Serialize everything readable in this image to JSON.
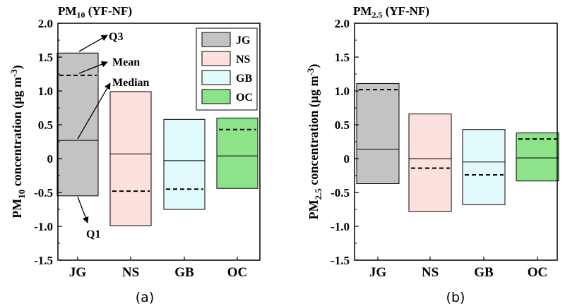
{
  "chart_data": [
    {
      "type": "box",
      "title_main": "PM",
      "title_sub": "10",
      "title_rest": " (YF-NF)",
      "ylabel_main": "PM",
      "ylabel_sub": "10",
      "ylabel_rest": " concentration (μg m",
      "ylabel_sup": "-3",
      "ylabel_end": ")",
      "panel_label": "(a)",
      "ylim": [
        -1.5,
        2.0
      ],
      "yticks": [
        "-1.5",
        "-1.0",
        "-0.5",
        "0",
        "0.5",
        "1.0",
        "1.5",
        "2.0"
      ],
      "categories": [
        "JG",
        "NS",
        "GB",
        "OC"
      ],
      "boxes": [
        {
          "q1": -0.55,
          "median": 0.27,
          "mean": 1.23,
          "q3": 1.56
        },
        {
          "q1": -0.99,
          "median": 0.07,
          "mean": -0.48,
          "q3": 0.99
        },
        {
          "q1": -0.75,
          "median": -0.03,
          "mean": -0.45,
          "q3": 0.58
        },
        {
          "q1": -0.44,
          "median": 0.04,
          "mean": 0.43,
          "q3": 0.6
        }
      ],
      "annotations": [
        "Q3",
        "Mean",
        "Median",
        "Q1"
      ],
      "legend": [
        "JG",
        "NS",
        "GB",
        "OC"
      ]
    },
    {
      "type": "box",
      "title_main": "PM",
      "title_sub": "2.5",
      "title_rest": " (YF-NF)",
      "ylabel_main": "PM",
      "ylabel_sub": "2.5",
      "ylabel_rest": " concentration (μg m",
      "ylabel_sup": "-3",
      "ylabel_end": ")",
      "panel_label": "(b)",
      "ylim": [
        -1.5,
        2.0
      ],
      "yticks": [
        "-1.5",
        "-1.0",
        "-0.5",
        "0",
        "0.5",
        "1.0",
        "1.5",
        "2.0"
      ],
      "categories": [
        "JG",
        "NS",
        "GB",
        "OC"
      ],
      "boxes": [
        {
          "q1": -0.37,
          "median": 0.14,
          "mean": 1.02,
          "q3": 1.11
        },
        {
          "q1": -0.78,
          "median": 0.0,
          "mean": -0.14,
          "q3": 0.66
        },
        {
          "q1": -0.68,
          "median": -0.05,
          "mean": -0.24,
          "q3": 0.43
        },
        {
          "q1": -0.33,
          "median": 0.01,
          "mean": 0.29,
          "q3": 0.38
        }
      ]
    }
  ],
  "colors": {
    "JG": "#c3c3c3",
    "NS": "#fde1de",
    "GB": "#e1fbfd",
    "OC": "#8de38a"
  }
}
